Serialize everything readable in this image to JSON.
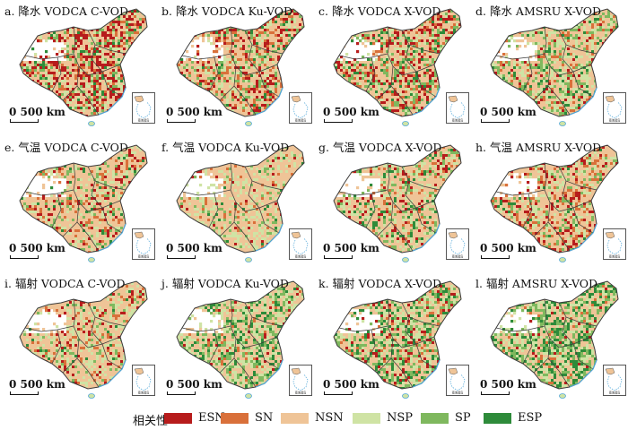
{
  "colors": {
    "ESN": "#b71c1c",
    "SN": "#d9703a",
    "NSN": "#efc497",
    "NSP": "#cfe3a4",
    "SP": "#7fb85e",
    "ESP": "#2e8b3a",
    "border": "#3a3a3a",
    "water": "#4fa6d8"
  },
  "scale_label": "0 500 km",
  "inset_label": "南海诸岛",
  "legend": {
    "title": "相关性",
    "items": [
      {
        "key": "ESN",
        "label": "ESN",
        "color": "#b71c1c"
      },
      {
        "key": "SN",
        "label": "SN",
        "color": "#d9703a"
      },
      {
        "key": "NSN",
        "label": "NSN",
        "color": "#efc497"
      },
      {
        "key": "NSP",
        "label": "NSP",
        "color": "#cfe3a4"
      },
      {
        "key": "SP",
        "label": "SP",
        "color": "#7fb85e"
      },
      {
        "key": "ESP",
        "label": "ESP",
        "color": "#2e8b3a"
      }
    ]
  },
  "panels": [
    {
      "title": "a. 降水 VODCA C-VOD",
      "mix": [
        0.22,
        0.1,
        0.4,
        0.15,
        0.09,
        0.04
      ]
    },
    {
      "title": "b. 降水 VODCA Ku-VOD",
      "mix": [
        0.14,
        0.12,
        0.48,
        0.12,
        0.09,
        0.05
      ]
    },
    {
      "title": "c. 降水 VODCA X-VOD",
      "mix": [
        0.15,
        0.1,
        0.42,
        0.12,
        0.14,
        0.07
      ]
    },
    {
      "title": "d. 降水 AMSRU X-VOD",
      "mix": [
        0.05,
        0.08,
        0.42,
        0.22,
        0.16,
        0.07
      ]
    },
    {
      "title": "e. 气温 VODCA C-VOD",
      "mix": [
        0.08,
        0.08,
        0.55,
        0.17,
        0.08,
        0.04
      ]
    },
    {
      "title": "f. 气温 VODCA Ku-VOD",
      "mix": [
        0.02,
        0.04,
        0.62,
        0.24,
        0.06,
        0.02
      ]
    },
    {
      "title": "g. 气温 VODCA X-VOD",
      "mix": [
        0.06,
        0.06,
        0.52,
        0.18,
        0.12,
        0.06
      ]
    },
    {
      "title": "h. 气温 AMSRU X-VOD",
      "mix": [
        0.12,
        0.14,
        0.5,
        0.14,
        0.07,
        0.03
      ]
    },
    {
      "title": "i. 辐射 VODCA C-VOD",
      "mix": [
        0.06,
        0.08,
        0.58,
        0.2,
        0.06,
        0.02
      ]
    },
    {
      "title": "j. 辐射 VODCA Ku-VOD",
      "mix": [
        0.02,
        0.03,
        0.4,
        0.25,
        0.18,
        0.12
      ]
    },
    {
      "title": "k. 辐射 VODCA X-VOD",
      "mix": [
        0.08,
        0.05,
        0.35,
        0.22,
        0.16,
        0.14
      ]
    },
    {
      "title": "l. 辐射 AMSRU X-VOD",
      "mix": [
        0.03,
        0.04,
        0.3,
        0.25,
        0.2,
        0.18
      ]
    }
  ]
}
